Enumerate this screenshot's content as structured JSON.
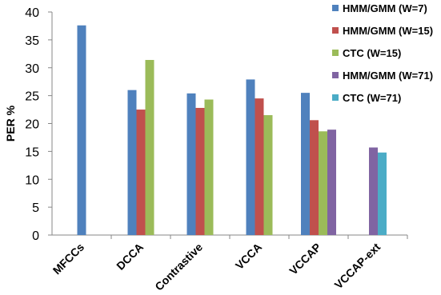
{
  "chart_data": {
    "type": "bar",
    "categories": [
      "MFCCs",
      "DCCA",
      "Contrastive",
      "VCCA",
      "VCCAP",
      "VCCAP-ext"
    ],
    "ylabel": "PER %",
    "xlabel": "",
    "title": "",
    "ylim": [
      0,
      40
    ],
    "yticks": [
      0,
      5,
      10,
      15,
      20,
      25,
      30,
      35,
      40
    ],
    "grid": false,
    "legend_position": "right",
    "series": [
      {
        "name": "HMM/GMM (W=7)",
        "color": "#4f81bd",
        "values": [
          37.6,
          26.0,
          25.4,
          27.9,
          25.5,
          null
        ]
      },
      {
        "name": "HMM/GMM (W=15)",
        "color": "#c0504d",
        "values": [
          null,
          22.5,
          22.8,
          24.5,
          20.6,
          null
        ]
      },
      {
        "name": "CTC (W=15)",
        "color": "#9bbb59",
        "values": [
          null,
          31.4,
          24.3,
          21.5,
          18.6,
          null
        ]
      },
      {
        "name": "HMM/GMM (W=71)",
        "color": "#8064a2",
        "values": [
          null,
          null,
          null,
          null,
          18.9,
          15.7
        ]
      },
      {
        "name": "CTC (W=71)",
        "color": "#4bacc6",
        "values": [
          null,
          null,
          null,
          null,
          null,
          14.8
        ]
      }
    ]
  }
}
